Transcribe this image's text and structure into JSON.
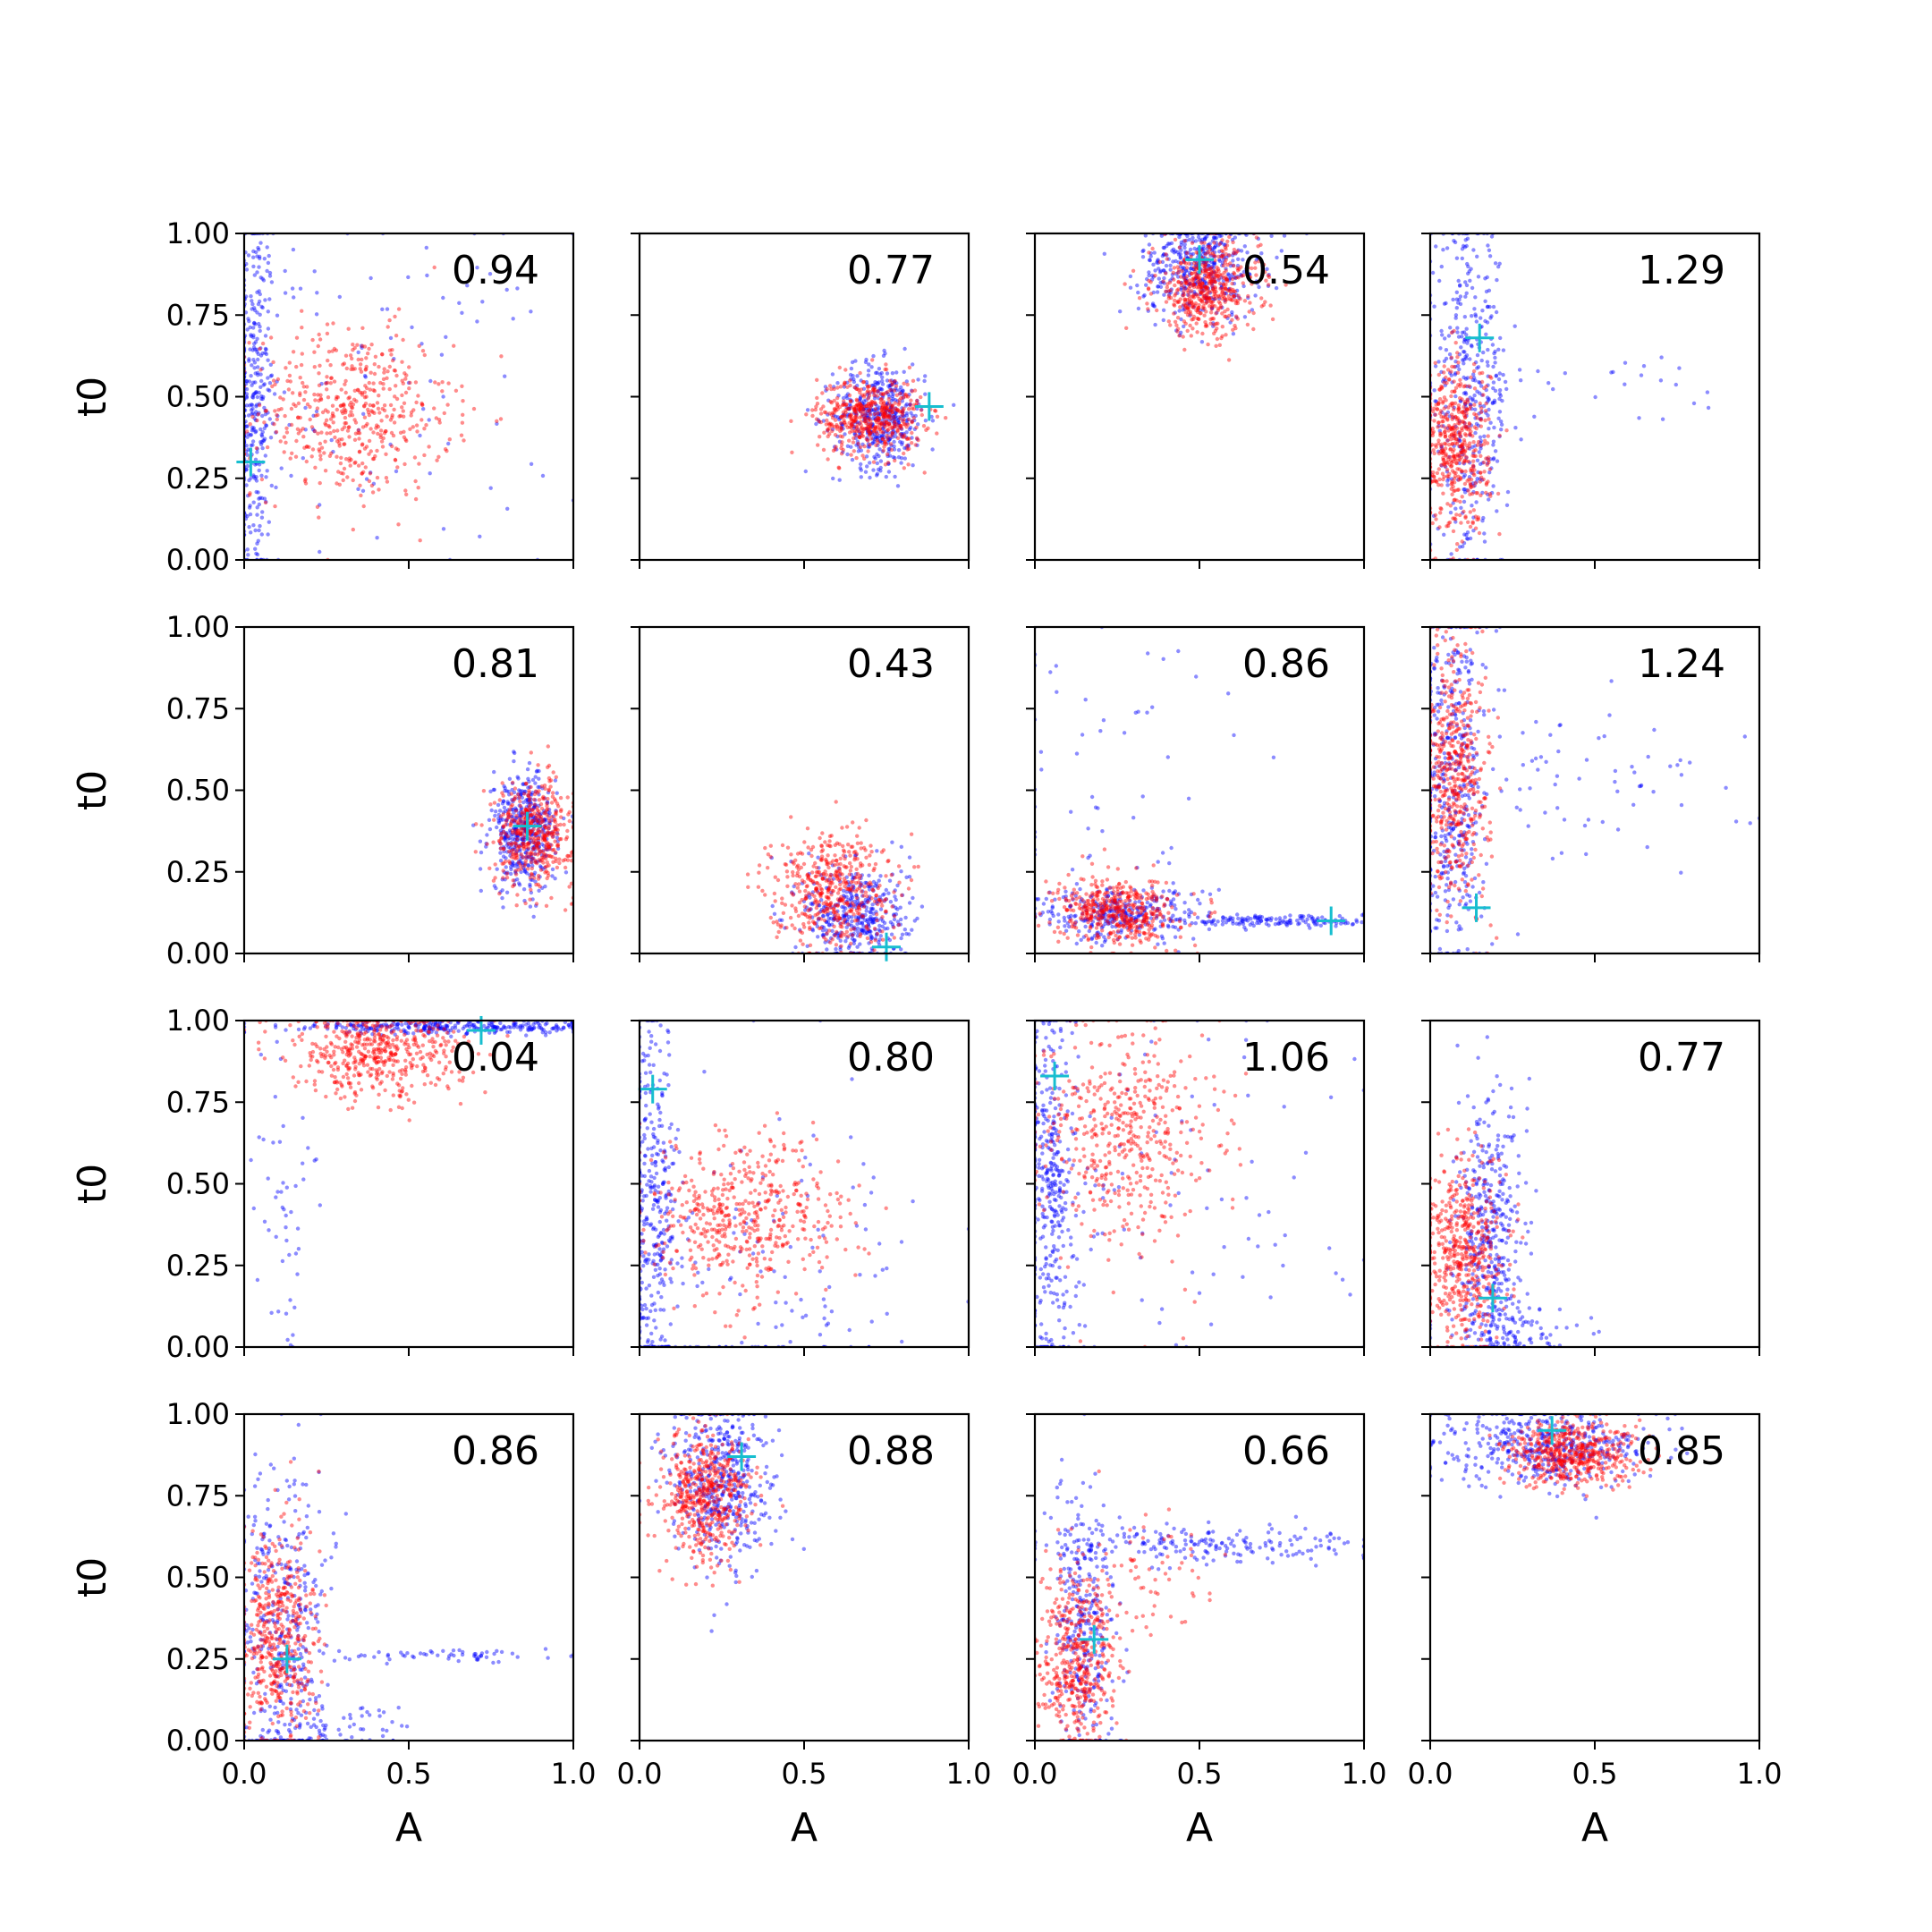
{
  "figure": {
    "xlabel": "A",
    "ylabel": "t0",
    "xticks": [
      "0.0",
      "0.5",
      "1.0"
    ],
    "yticks": [
      "0.00",
      "0.25",
      "0.50",
      "0.75",
      "1.00"
    ],
    "colors": {
      "series_a": "#0000ff",
      "series_b": "#ff0000",
      "marker": "#17becf"
    }
  },
  "chart_data": [
    {
      "type": "scatter",
      "title": "",
      "label": "0.94",
      "xlim": [
        0,
        1
      ],
      "ylim": [
        0,
        1
      ],
      "marker": {
        "x": 0.02,
        "y": 0.3
      },
      "series": [
        {
          "color": "#0000ff",
          "clusters": [
            {
              "cx": 0.03,
              "cy": 0.5,
              "sx": 0.03,
              "sy": 0.3,
              "n": 350
            },
            {
              "cx": 0.35,
              "cy": 0.5,
              "sx": 0.3,
              "sy": 0.28,
              "n": 110
            }
          ]
        },
        {
          "color": "#ff0000",
          "clusters": [
            {
              "cx": 0.33,
              "cy": 0.45,
              "sx": 0.15,
              "sy": 0.13,
              "n": 500
            }
          ]
        }
      ]
    },
    {
      "type": "scatter",
      "title": "",
      "label": "0.77",
      "xlim": [
        0,
        1
      ],
      "ylim": [
        0,
        1
      ],
      "marker": {
        "x": 0.88,
        "y": 0.47
      },
      "series": [
        {
          "color": "#0000ff",
          "clusters": [
            {
              "cx": 0.73,
              "cy": 0.44,
              "sx": 0.07,
              "sy": 0.08,
              "n": 450
            }
          ]
        },
        {
          "color": "#ff0000",
          "clusters": [
            {
              "cx": 0.7,
              "cy": 0.44,
              "sx": 0.08,
              "sy": 0.06,
              "n": 500
            }
          ]
        }
      ]
    },
    {
      "type": "scatter",
      "title": "",
      "label": "0.54",
      "xlim": [
        0,
        1
      ],
      "ylim": [
        0,
        1
      ],
      "marker": {
        "x": 0.5,
        "y": 0.92
      },
      "series": [
        {
          "color": "#0000ff",
          "clusters": [
            {
              "cx": 0.5,
              "cy": 0.9,
              "sx": 0.09,
              "sy": 0.08,
              "n": 450
            }
          ]
        },
        {
          "color": "#ff0000",
          "clusters": [
            {
              "cx": 0.52,
              "cy": 0.83,
              "sx": 0.08,
              "sy": 0.07,
              "n": 500
            }
          ]
        }
      ]
    },
    {
      "type": "scatter",
      "title": "",
      "label": "1.29",
      "xlim": [
        0,
        1
      ],
      "ylim": [
        0,
        1
      ],
      "marker": {
        "x": 0.15,
        "y": 0.68
      },
      "series": [
        {
          "color": "#0000ff",
          "clusters": [
            {
              "cx": 0.12,
              "cy": 0.5,
              "sx": 0.06,
              "sy": 0.25,
              "n": 420
            },
            {
              "cx": 0.5,
              "cy": 0.55,
              "sx": 0.2,
              "sy": 0.05,
              "n": 25
            }
          ]
        },
        {
          "color": "#ff0000",
          "clusters": [
            {
              "cx": 0.08,
              "cy": 0.35,
              "sx": 0.05,
              "sy": 0.13,
              "n": 480
            }
          ]
        }
      ]
    },
    {
      "type": "scatter",
      "title": "",
      "label": "0.81",
      "xlim": [
        0,
        1
      ],
      "ylim": [
        0,
        1
      ],
      "marker": {
        "x": 0.86,
        "y": 0.39
      },
      "series": [
        {
          "color": "#0000ff",
          "clusters": [
            {
              "cx": 0.85,
              "cy": 0.37,
              "sx": 0.05,
              "sy": 0.09,
              "n": 450
            }
          ]
        },
        {
          "color": "#ff0000",
          "clusters": [
            {
              "cx": 0.88,
              "cy": 0.37,
              "sx": 0.06,
              "sy": 0.08,
              "n": 450
            }
          ]
        }
      ]
    },
    {
      "type": "scatter",
      "title": "",
      "label": "0.43",
      "xlim": [
        0,
        1
      ],
      "ylim": [
        0,
        1
      ],
      "marker": {
        "x": 0.75,
        "y": 0.02
      },
      "series": [
        {
          "color": "#0000ff",
          "clusters": [
            {
              "cx": 0.66,
              "cy": 0.12,
              "sx": 0.08,
              "sy": 0.08,
              "n": 400
            }
          ]
        },
        {
          "color": "#ff0000",
          "clusters": [
            {
              "cx": 0.58,
              "cy": 0.2,
              "sx": 0.09,
              "sy": 0.09,
              "n": 480
            }
          ]
        }
      ]
    },
    {
      "type": "scatter",
      "title": "",
      "label": "0.86",
      "xlim": [
        0,
        1
      ],
      "ylim": [
        0,
        1
      ],
      "marker": {
        "x": 0.9,
        "y": 0.1
      },
      "series": [
        {
          "color": "#0000ff",
          "clusters": [
            {
              "cx": 0.25,
              "cy": 0.12,
              "sx": 0.12,
              "sy": 0.04,
              "n": 300
            },
            {
              "cx": 0.75,
              "cy": 0.1,
              "sx": 0.15,
              "sy": 0.01,
              "n": 150
            },
            {
              "cx": 0.2,
              "cy": 0.5,
              "sx": 0.25,
              "sy": 0.3,
              "n": 60
            }
          ]
        },
        {
          "color": "#ff0000",
          "clusters": [
            {
              "cx": 0.25,
              "cy": 0.13,
              "sx": 0.09,
              "sy": 0.05,
              "n": 450
            }
          ]
        }
      ]
    },
    {
      "type": "scatter",
      "title": "",
      "label": "1.24",
      "xlim": [
        0,
        1
      ],
      "ylim": [
        0,
        1
      ],
      "marker": {
        "x": 0.14,
        "y": 0.14
      },
      "series": [
        {
          "color": "#0000ff",
          "clusters": [
            {
              "cx": 0.07,
              "cy": 0.5,
              "sx": 0.05,
              "sy": 0.28,
              "n": 420
            },
            {
              "cx": 0.5,
              "cy": 0.55,
              "sx": 0.25,
              "sy": 0.15,
              "n": 70
            }
          ]
        },
        {
          "color": "#ff0000",
          "clusters": [
            {
              "cx": 0.08,
              "cy": 0.55,
              "sx": 0.05,
              "sy": 0.2,
              "n": 480
            }
          ]
        }
      ]
    },
    {
      "type": "scatter",
      "title": "",
      "label": "0.04",
      "xlim": [
        0,
        1
      ],
      "ylim": [
        0,
        1
      ],
      "marker": {
        "x": 0.72,
        "y": 0.97
      },
      "series": [
        {
          "color": "#0000ff",
          "clusters": [
            {
              "cx": 0.65,
              "cy": 0.98,
              "sx": 0.25,
              "sy": 0.01,
              "n": 300
            },
            {
              "cx": 0.12,
              "cy": 0.4,
              "sx": 0.05,
              "sy": 0.3,
              "n": 50
            }
          ]
        },
        {
          "color": "#ff0000",
          "clusters": [
            {
              "cx": 0.4,
              "cy": 0.9,
              "sx": 0.13,
              "sy": 0.07,
              "n": 500
            }
          ]
        }
      ]
    },
    {
      "type": "scatter",
      "title": "",
      "label": "0.80",
      "xlim": [
        0,
        1
      ],
      "ylim": [
        0,
        1
      ],
      "marker": {
        "x": 0.04,
        "y": 0.79
      },
      "series": [
        {
          "color": "#0000ff",
          "clusters": [
            {
              "cx": 0.04,
              "cy": 0.4,
              "sx": 0.04,
              "sy": 0.3,
              "n": 350
            },
            {
              "cx": 0.35,
              "cy": 0.25,
              "sx": 0.25,
              "sy": 0.25,
              "n": 150
            }
          ]
        },
        {
          "color": "#ff0000",
          "clusters": [
            {
              "cx": 0.32,
              "cy": 0.4,
              "sx": 0.15,
              "sy": 0.12,
              "n": 500
            }
          ]
        }
      ]
    },
    {
      "type": "scatter",
      "title": "",
      "label": "1.06",
      "xlim": [
        0,
        1
      ],
      "ylim": [
        0,
        1
      ],
      "marker": {
        "x": 0.06,
        "y": 0.83
      },
      "series": [
        {
          "color": "#0000ff",
          "clusters": [
            {
              "cx": 0.05,
              "cy": 0.5,
              "sx": 0.04,
              "sy": 0.3,
              "n": 380
            },
            {
              "cx": 0.45,
              "cy": 0.5,
              "sx": 0.3,
              "sy": 0.3,
              "n": 90
            }
          ]
        },
        {
          "color": "#ff0000",
          "clusters": [
            {
              "cx": 0.28,
              "cy": 0.65,
              "sx": 0.13,
              "sy": 0.17,
              "n": 480
            }
          ]
        }
      ]
    },
    {
      "type": "scatter",
      "title": "",
      "label": "0.77",
      "xlim": [
        0,
        1
      ],
      "ylim": [
        0,
        1
      ],
      "marker": {
        "x": 0.19,
        "y": 0.15
      },
      "series": [
        {
          "color": "#0000ff",
          "clusters": [
            {
              "cx": 0.18,
              "cy": 0.35,
              "sx": 0.05,
              "sy": 0.2,
              "n": 400
            },
            {
              "cx": 0.25,
              "cy": 0.05,
              "sx": 0.12,
              "sy": 0.04,
              "n": 100
            }
          ]
        },
        {
          "color": "#ff0000",
          "clusters": [
            {
              "cx": 0.1,
              "cy": 0.28,
              "sx": 0.06,
              "sy": 0.14,
              "n": 480
            }
          ]
        }
      ]
    },
    {
      "type": "scatter",
      "title": "",
      "label": "0.86",
      "xlim": [
        0,
        1
      ],
      "ylim": [
        0,
        1
      ],
      "marker": {
        "x": 0.13,
        "y": 0.25
      },
      "series": [
        {
          "color": "#0000ff",
          "clusters": [
            {
              "cx": 0.12,
              "cy": 0.35,
              "sx": 0.07,
              "sy": 0.25,
              "n": 380
            },
            {
              "cx": 0.3,
              "cy": 0.05,
              "sx": 0.1,
              "sy": 0.04,
              "n": 60
            },
            {
              "cx": 0.65,
              "cy": 0.26,
              "sx": 0.18,
              "sy": 0.01,
              "n": 60
            }
          ]
        },
        {
          "color": "#ff0000",
          "clusters": [
            {
              "cx": 0.1,
              "cy": 0.3,
              "sx": 0.06,
              "sy": 0.17,
              "n": 480
            }
          ]
        }
      ]
    },
    {
      "type": "scatter",
      "title": "",
      "label": "0.88",
      "xlim": [
        0,
        1
      ],
      "ylim": [
        0,
        1
      ],
      "marker": {
        "x": 0.31,
        "y": 0.87
      },
      "series": [
        {
          "color": "#0000ff",
          "clusters": [
            {
              "cx": 0.25,
              "cy": 0.78,
              "sx": 0.08,
              "sy": 0.13,
              "n": 450
            }
          ]
        },
        {
          "color": "#ff0000",
          "clusters": [
            {
              "cx": 0.2,
              "cy": 0.75,
              "sx": 0.07,
              "sy": 0.1,
              "n": 500
            }
          ]
        }
      ]
    },
    {
      "type": "scatter",
      "title": "",
      "label": "0.66",
      "xlim": [
        0,
        1
      ],
      "ylim": [
        0,
        1
      ],
      "marker": {
        "x": 0.18,
        "y": 0.31
      },
      "series": [
        {
          "color": "#0000ff",
          "clusters": [
            {
              "cx": 0.15,
              "cy": 0.35,
              "sx": 0.05,
              "sy": 0.2,
              "n": 300
            },
            {
              "cx": 0.55,
              "cy": 0.6,
              "sx": 0.25,
              "sy": 0.03,
              "n": 200
            }
          ]
        },
        {
          "color": "#ff0000",
          "clusters": [
            {
              "cx": 0.13,
              "cy": 0.25,
              "sx": 0.06,
              "sy": 0.13,
              "n": 450
            },
            {
              "cx": 0.35,
              "cy": 0.5,
              "sx": 0.12,
              "sy": 0.1,
              "n": 60
            }
          ]
        }
      ]
    },
    {
      "type": "scatter",
      "title": "",
      "label": "0.85",
      "xlim": [
        0,
        1
      ],
      "ylim": [
        0,
        1
      ],
      "marker": {
        "x": 0.37,
        "y": 0.95
      },
      "series": [
        {
          "color": "#0000ff",
          "clusters": [
            {
              "cx": 0.35,
              "cy": 0.9,
              "sx": 0.15,
              "sy": 0.06,
              "n": 450
            }
          ]
        },
        {
          "color": "#ff0000",
          "clusters": [
            {
              "cx": 0.43,
              "cy": 0.88,
              "sx": 0.1,
              "sy": 0.05,
              "n": 500
            }
          ]
        }
      ]
    }
  ]
}
